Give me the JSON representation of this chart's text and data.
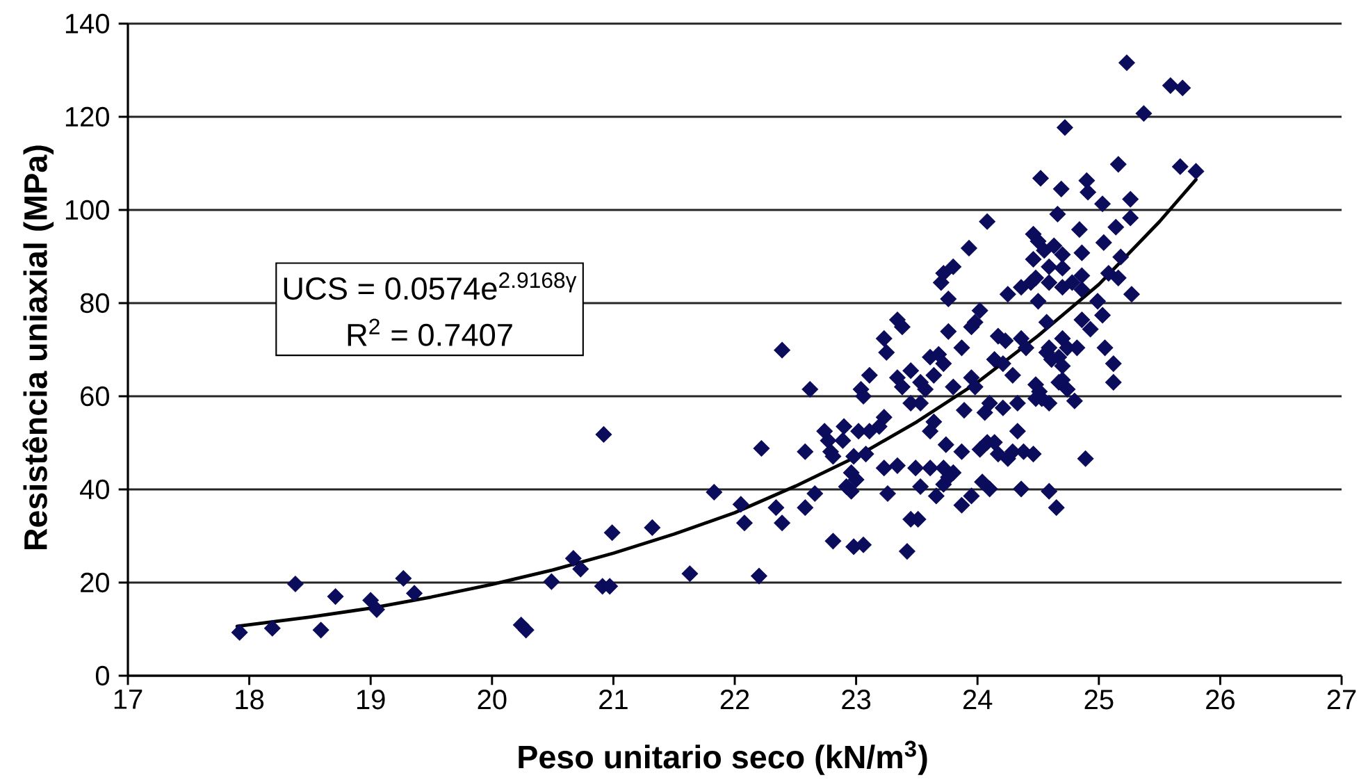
{
  "chart_data": {
    "type": "scatter",
    "xlabel": "Peso unitario seco (kN/m$^{3}$)",
    "ylabel": "Resistência uniaxial (MPa)",
    "annotations": [
      "UCS = 0.0574e$^{2.9168γ}$",
      "R$^{2}$ = 0.7407"
    ],
    "xlim": [
      17,
      27
    ],
    "xticks": [
      17,
      18,
      19,
      20,
      21,
      22,
      23,
      24,
      25,
      26,
      27
    ],
    "ylim": [
      0,
      140
    ],
    "yticks": [
      0,
      20,
      40,
      60,
      80,
      100,
      120,
      140
    ],
    "grid": "y",
    "marker": "diamond",
    "series": [
      {
        "color": "#0c0c5c",
        "x": [
          17.92,
          18.19,
          18.38,
          18.59,
          18.71,
          19.0,
          19.05,
          19.27,
          19.36,
          20.24,
          20.28,
          20.49,
          20.67,
          20.73,
          20.92,
          20.91,
          20.97,
          20.99,
          21.32,
          21.63,
          21.83,
          22.05,
          22.08,
          22.22,
          22.2,
          22.34,
          22.39,
          22.39,
          23.7,
          23.76,
          24.25,
          24.36,
          24.44,
          24.59,
          24.7,
          24.5,
          24.02,
          23.34,
          23.38,
          23.98,
          23.95,
          23.76,
          24.17,
          24.23,
          24.57,
          24.59,
          24.67,
          23.23,
          23.25,
          24.36,
          24.4,
          23.61,
          23.68,
          23.72,
          23.87,
          24.14,
          24.21,
          23.45,
          23.11,
          23.34,
          23.38,
          23.53,
          23.57,
          23.64,
          23.8,
          23.95,
          23.98,
          24.29,
          24.48,
          24.51,
          22.62,
          23.04,
          23.06,
          24.7,
          24.74,
          23.45,
          23.53,
          23.89,
          24.06,
          24.1,
          24.21,
          24.33,
          24.48,
          24.59,
          23.23,
          23.19,
          23.64,
          23.61,
          22.74,
          22.77,
          22.9,
          22.89,
          23.02,
          23.11,
          22.58,
          22.79,
          22.81,
          22.98,
          23.08,
          24.33,
          23.74,
          23.87,
          24.02,
          24.08,
          24.14,
          24.17,
          24.25,
          24.29,
          24.38,
          24.46,
          23.23,
          23.34,
          23.49,
          23.61,
          23.72,
          23.8,
          22.96,
          23.0,
          22.92,
          22.96,
          22.58,
          22.66,
          23.26,
          23.53,
          23.66,
          23.72,
          23.76,
          23.87,
          23.95,
          24.04,
          24.1,
          24.36,
          24.59,
          24.65,
          23.45,
          23.51,
          22.81,
          22.98,
          23.06,
          23.42,
          25.23,
          25.59,
          25.69,
          25.37,
          24.72,
          25.16,
          25.67,
          25.8,
          24.52,
          24.9,
          24.91,
          24.69,
          25.03,
          25.26,
          24.66,
          24.08,
          25.14,
          25.26,
          24.84,
          24.46,
          24.5,
          23.93,
          25.04,
          23.8,
          23.72,
          24.55,
          24.63,
          24.7,
          24.86,
          24.59,
          24.46,
          24.7,
          25.18,
          24.86,
          24.78,
          24.48,
          24.86,
          25.08,
          25.16,
          25.27,
          24.99,
          25.05,
          25.12,
          25.12,
          24.89,
          24.8,
          24.57,
          24.61,
          24.7,
          24.7,
          24.74,
          24.82,
          25.03,
          24.86,
          24.93,
          24.67,
          24.53
        ],
        "values": [
          9.3,
          10.2,
          19.7,
          9.8,
          17.0,
          16.2,
          14.2,
          20.9,
          17.7,
          10.9,
          9.8,
          20.2,
          25.2,
          22.9,
          51.8,
          19.2,
          19.2,
          30.7,
          31.8,
          21.9,
          39.4,
          36.8,
          32.8,
          48.8,
          21.4,
          36.1,
          32.8,
          69.9,
          84.4,
          80.9,
          81.9,
          83.4,
          84.4,
          84.4,
          83.4,
          80.4,
          78.4,
          76.4,
          74.9,
          75.9,
          74.9,
          73.9,
          72.9,
          71.9,
          75.9,
          70.4,
          68.4,
          72.4,
          69.4,
          72.4,
          70.4,
          68.4,
          69.0,
          67.0,
          70.4,
          67.9,
          67.0,
          65.5,
          64.5,
          64.0,
          62.0,
          63.0,
          61.5,
          64.5,
          62.0,
          64.0,
          62.0,
          64.5,
          62.5,
          61.0,
          61.5,
          61.5,
          60.0,
          63.5,
          61.5,
          58.5,
          58.5,
          57.0,
          56.5,
          58.5,
          57.5,
          58.5,
          59.5,
          58.5,
          55.5,
          53.5,
          54.5,
          52.5,
          52.5,
          50.5,
          53.5,
          50.5,
          52.5,
          52.5,
          48.1,
          48.1,
          47.1,
          47.1,
          47.6,
          52.5,
          49.6,
          48.1,
          48.6,
          50.1,
          50.1,
          47.6,
          46.6,
          48.1,
          48.1,
          47.6,
          44.6,
          45.1,
          44.6,
          44.6,
          44.6,
          43.6,
          43.6,
          42.1,
          40.6,
          39.6,
          36.1,
          39.1,
          39.1,
          40.6,
          38.6,
          41.1,
          42.6,
          36.6,
          38.6,
          41.6,
          40.1,
          40.1,
          39.6,
          36.1,
          33.6,
          33.6,
          28.9,
          27.7,
          28.1,
          26.7,
          131.6,
          126.7,
          126.2,
          120.7,
          117.7,
          109.8,
          109.3,
          108.3,
          106.8,
          106.3,
          103.8,
          104.5,
          101.3,
          102.3,
          99.1,
          97.5,
          96.3,
          98.3,
          95.8,
          94.8,
          93.3,
          91.8,
          93.0,
          87.8,
          86.4,
          91.3,
          92.3,
          90.4,
          90.8,
          87.8,
          89.4,
          87.5,
          89.9,
          85.9,
          84.4,
          85.4,
          82.9,
          86.4,
          85.4,
          81.9,
          80.4,
          70.4,
          67.0,
          63.0,
          46.6,
          59.0,
          69.4,
          67.9,
          66.5,
          72.4,
          70.4,
          70.4,
          77.4,
          76.4,
          74.4,
          63.0,
          59.5
        ]
      },
      {
        "type": "line",
        "color": "#000000",
        "marker": "none",
        "x": [
          17.9,
          18.5,
          19.0,
          19.5,
          20.0,
          20.5,
          21.0,
          21.5,
          22.0,
          22.5,
          23.0,
          23.5,
          24.0,
          24.5,
          25.0,
          25.5,
          25.8
        ],
        "values": [
          10.6,
          12.6,
          14.5,
          16.9,
          19.6,
          22.7,
          26.3,
          30.4,
          35.0,
          40.7,
          47.0,
          54.5,
          63.0,
          73.0,
          84.0,
          97.5,
          106.5
        ]
      }
    ]
  }
}
